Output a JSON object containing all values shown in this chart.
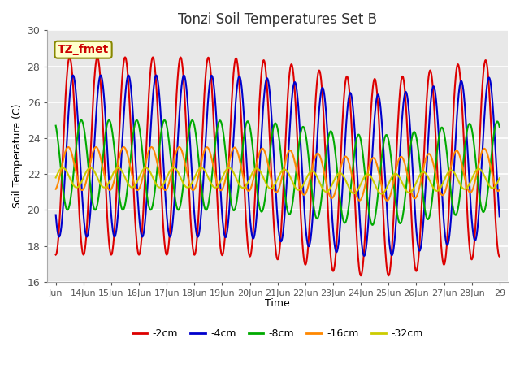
{
  "title": "Tonzi Soil Temperatures Set B",
  "xlabel": "Time",
  "ylabel": "Soil Temperature (C)",
  "ylim": [
    16,
    30
  ],
  "ytick_values": [
    16,
    18,
    20,
    22,
    24,
    26,
    28,
    30
  ],
  "annotation_text": "TZ_fmet",
  "annotation_color": "#cc0000",
  "annotation_bg": "#ffffcc",
  "annotation_border": "#888800",
  "series": [
    {
      "label": "-2cm",
      "color": "#dd0000",
      "lw": 1.5
    },
    {
      "label": "-4cm",
      "color": "#0000cc",
      "lw": 1.5
    },
    {
      "label": "-8cm",
      "color": "#00aa00",
      "lw": 1.5
    },
    {
      "label": "-16cm",
      "color": "#ff8800",
      "lw": 1.5
    },
    {
      "label": "-32cm",
      "color": "#cccc00",
      "lw": 1.5
    }
  ],
  "bg_color": "#e8e8e8",
  "grid_color": "#ffffff"
}
